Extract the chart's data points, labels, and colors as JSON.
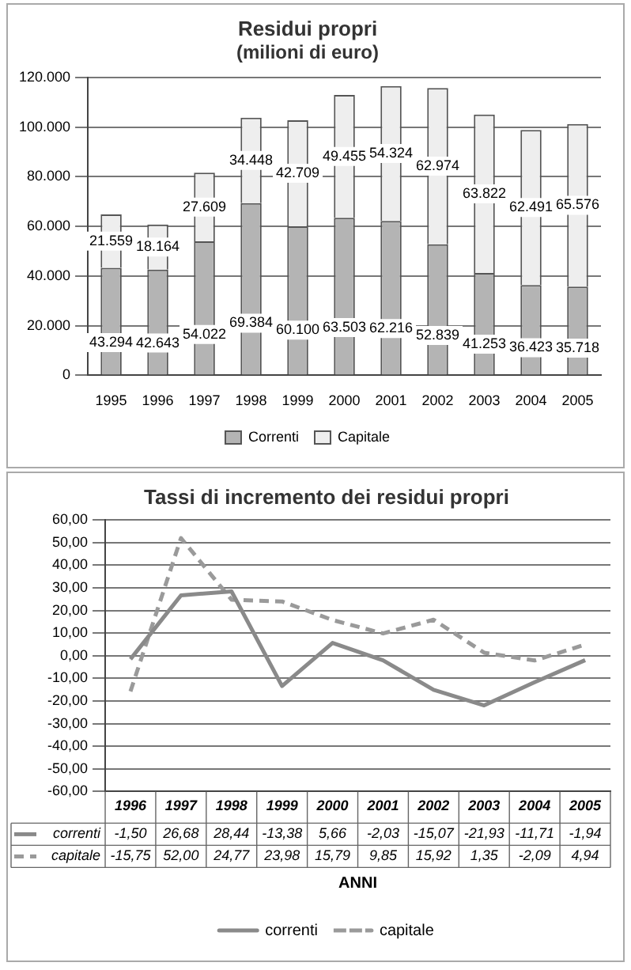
{
  "chart_data": [
    {
      "type": "bar",
      "title": "Residui propri",
      "subtitle": "(milioni di euro)",
      "stacked": true,
      "grid": "y",
      "legend": "bottom",
      "categories": [
        "1995",
        "1996",
        "1997",
        "1998",
        "1999",
        "2000",
        "2001",
        "2002",
        "2003",
        "2004",
        "2005"
      ],
      "ylim": [
        0,
        120000
      ],
      "yticks": [
        {
          "value": 0,
          "label": "0"
        },
        {
          "value": 20000,
          "label": "20.000"
        },
        {
          "value": 40000,
          "label": "40.000"
        },
        {
          "value": 60000,
          "label": "60.000"
        },
        {
          "value": 80000,
          "label": "80.000"
        },
        {
          "value": 100000,
          "label": "100.000"
        },
        {
          "value": 120000,
          "label": "120.000"
        }
      ],
      "series": [
        {
          "name": "Correnti",
          "color": "#b4b4b4",
          "values": [
            43294,
            42643,
            54022,
            69384,
            60100,
            63503,
            62216,
            52839,
            41253,
            36423,
            35718
          ],
          "value_labels": [
            "43.294",
            "42.643",
            "54.022",
            "69.384",
            "60.100",
            "63.503",
            "62.216",
            "52.839",
            "41.253",
            "36.423",
            "35.718"
          ]
        },
        {
          "name": "Capitale",
          "color": "#eeeeee",
          "values": [
            21559,
            18164,
            27609,
            34448,
            42709,
            49455,
            54324,
            62974,
            63822,
            62491,
            65576
          ],
          "value_labels": [
            "21.559",
            "18.164",
            "27.609",
            "34.448",
            "42.709",
            "49.455",
            "54.324",
            "62.974",
            "63.822",
            "62.491",
            "65.576"
          ]
        }
      ]
    },
    {
      "type": "line",
      "title": "Tassi di incremento dei residui propri",
      "xlabel": "ANNI",
      "grid": "y",
      "legend": "bottom",
      "marker": "none",
      "categories": [
        "1996",
        "1997",
        "1998",
        "1999",
        "2000",
        "2001",
        "2002",
        "2003",
        "2004",
        "2005"
      ],
      "ylim": [
        -60,
        60
      ],
      "yticks": [
        {
          "value": -60,
          "label": "-60,00"
        },
        {
          "value": -50,
          "label": "-50,00"
        },
        {
          "value": -40,
          "label": "-40,00"
        },
        {
          "value": -30,
          "label": "-30,00"
        },
        {
          "value": -20,
          "label": "-20,00"
        },
        {
          "value": -10,
          "label": "-10,00"
        },
        {
          "value": 0,
          "label": "0,00"
        },
        {
          "value": 10,
          "label": "10,00"
        },
        {
          "value": 20,
          "label": "20,00"
        },
        {
          "value": 30,
          "label": "30,00"
        },
        {
          "value": 40,
          "label": "40,00"
        },
        {
          "value": 50,
          "label": "50,00"
        },
        {
          "value": 60,
          "label": "60,00"
        }
      ],
      "series": [
        {
          "name": "correnti",
          "color": "#8a8a8a",
          "line_style": "solid",
          "values": [
            -1.5,
            26.68,
            28.44,
            -13.38,
            5.66,
            -2.03,
            -15.07,
            -21.93,
            -11.71,
            -1.94
          ],
          "value_labels": [
            "-1,50",
            "26,68",
            "28,44",
            "-13,38",
            "5,66",
            "-2,03",
            "-15,07",
            "-21,93",
            "-11,71",
            "-1,94"
          ]
        },
        {
          "name": "capitale",
          "color": "#9a9a9a",
          "line_style": "dashed",
          "values": [
            -15.75,
            52.0,
            24.77,
            23.98,
            15.79,
            9.85,
            15.92,
            1.35,
            -2.09,
            4.94
          ],
          "value_labels": [
            "-15,75",
            "52,00",
            "24,77",
            "23,98",
            "15,79",
            "9,85",
            "15,92",
            "1,35",
            "-2,09",
            "4,94"
          ]
        }
      ]
    }
  ]
}
